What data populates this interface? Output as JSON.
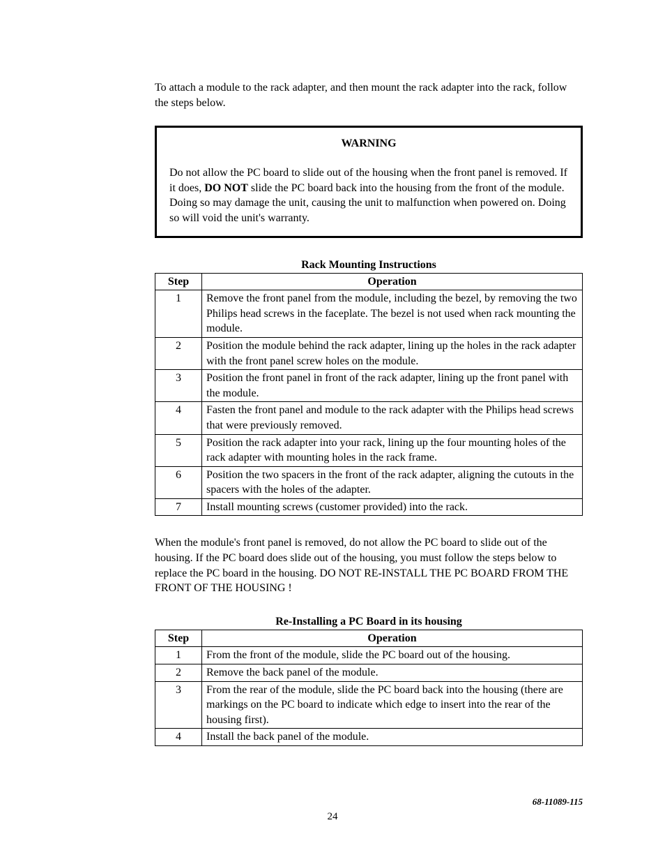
{
  "intro": "To attach a module to the rack adapter, and then mount the rack adapter into the rack, follow the steps below.",
  "warning": {
    "title": "WARNING",
    "pre": "Do not allow the PC board to slide out of the housing when the front panel is removed.  If it does, ",
    "bold": "DO NOT",
    "post": " slide the PC board back into the housing from the front of the module.  Doing so may damage the unit, causing the unit to malfunction when powered on.  Doing so will void the unit's warranty."
  },
  "table1": {
    "caption": "Rack Mounting Instructions",
    "headers": {
      "step": "Step",
      "operation": "Operation"
    },
    "rows": [
      {
        "step": "1",
        "op": "Remove the front panel from the module, including the bezel, by removing the two Philips head screws in the faceplate. The bezel is not used when rack mounting the module."
      },
      {
        "step": "2",
        "op": "Position the module behind the rack adapter, lining up the holes in the rack adapter with the front panel screw holes on the module."
      },
      {
        "step": "3",
        "op": "Position the front panel in front of the rack adapter, lining up the front panel with the module."
      },
      {
        "step": "4",
        "op": "Fasten the front panel and module to the rack adapter with the Philips head screws that were previously removed."
      },
      {
        "step": "5",
        "op": "Position the rack adapter into your rack, lining up the four mounting holes of the rack adapter with mounting holes in the rack frame."
      },
      {
        "step": "6",
        "op": "Position the two spacers in the front of the rack adapter, aligning the cutouts in the spacers with the holes of the adapter."
      },
      {
        "step": "7",
        "op": "Install mounting screws (customer provided) into the rack."
      }
    ]
  },
  "mid_para": "When the module's front panel is removed, do not allow the PC board to slide out of the housing.  If the PC board does slide out of the housing, you must follow the steps below to replace the PC board in the housing.  DO NOT RE-INSTALL THE PC BOARD FROM THE FRONT OF THE HOUSING !",
  "table2": {
    "caption": "Re-Installing a PC Board in its housing",
    "headers": {
      "step": "Step",
      "operation": "Operation"
    },
    "rows": [
      {
        "step": "1",
        "op": "From the front of the module, slide the PC board out of the housing."
      },
      {
        "step": "2",
        "op": "Remove the back panel of the module."
      },
      {
        "step": "3",
        "op": "From the rear of the module, slide the PC board back into the housing (there are markings on the PC board to indicate which edge to insert into the rear of the housing first)."
      },
      {
        "step": "4",
        "op": "Install the back panel of the module."
      }
    ]
  },
  "footer": {
    "docnum": "68-11089-115",
    "pagenum": "24"
  }
}
